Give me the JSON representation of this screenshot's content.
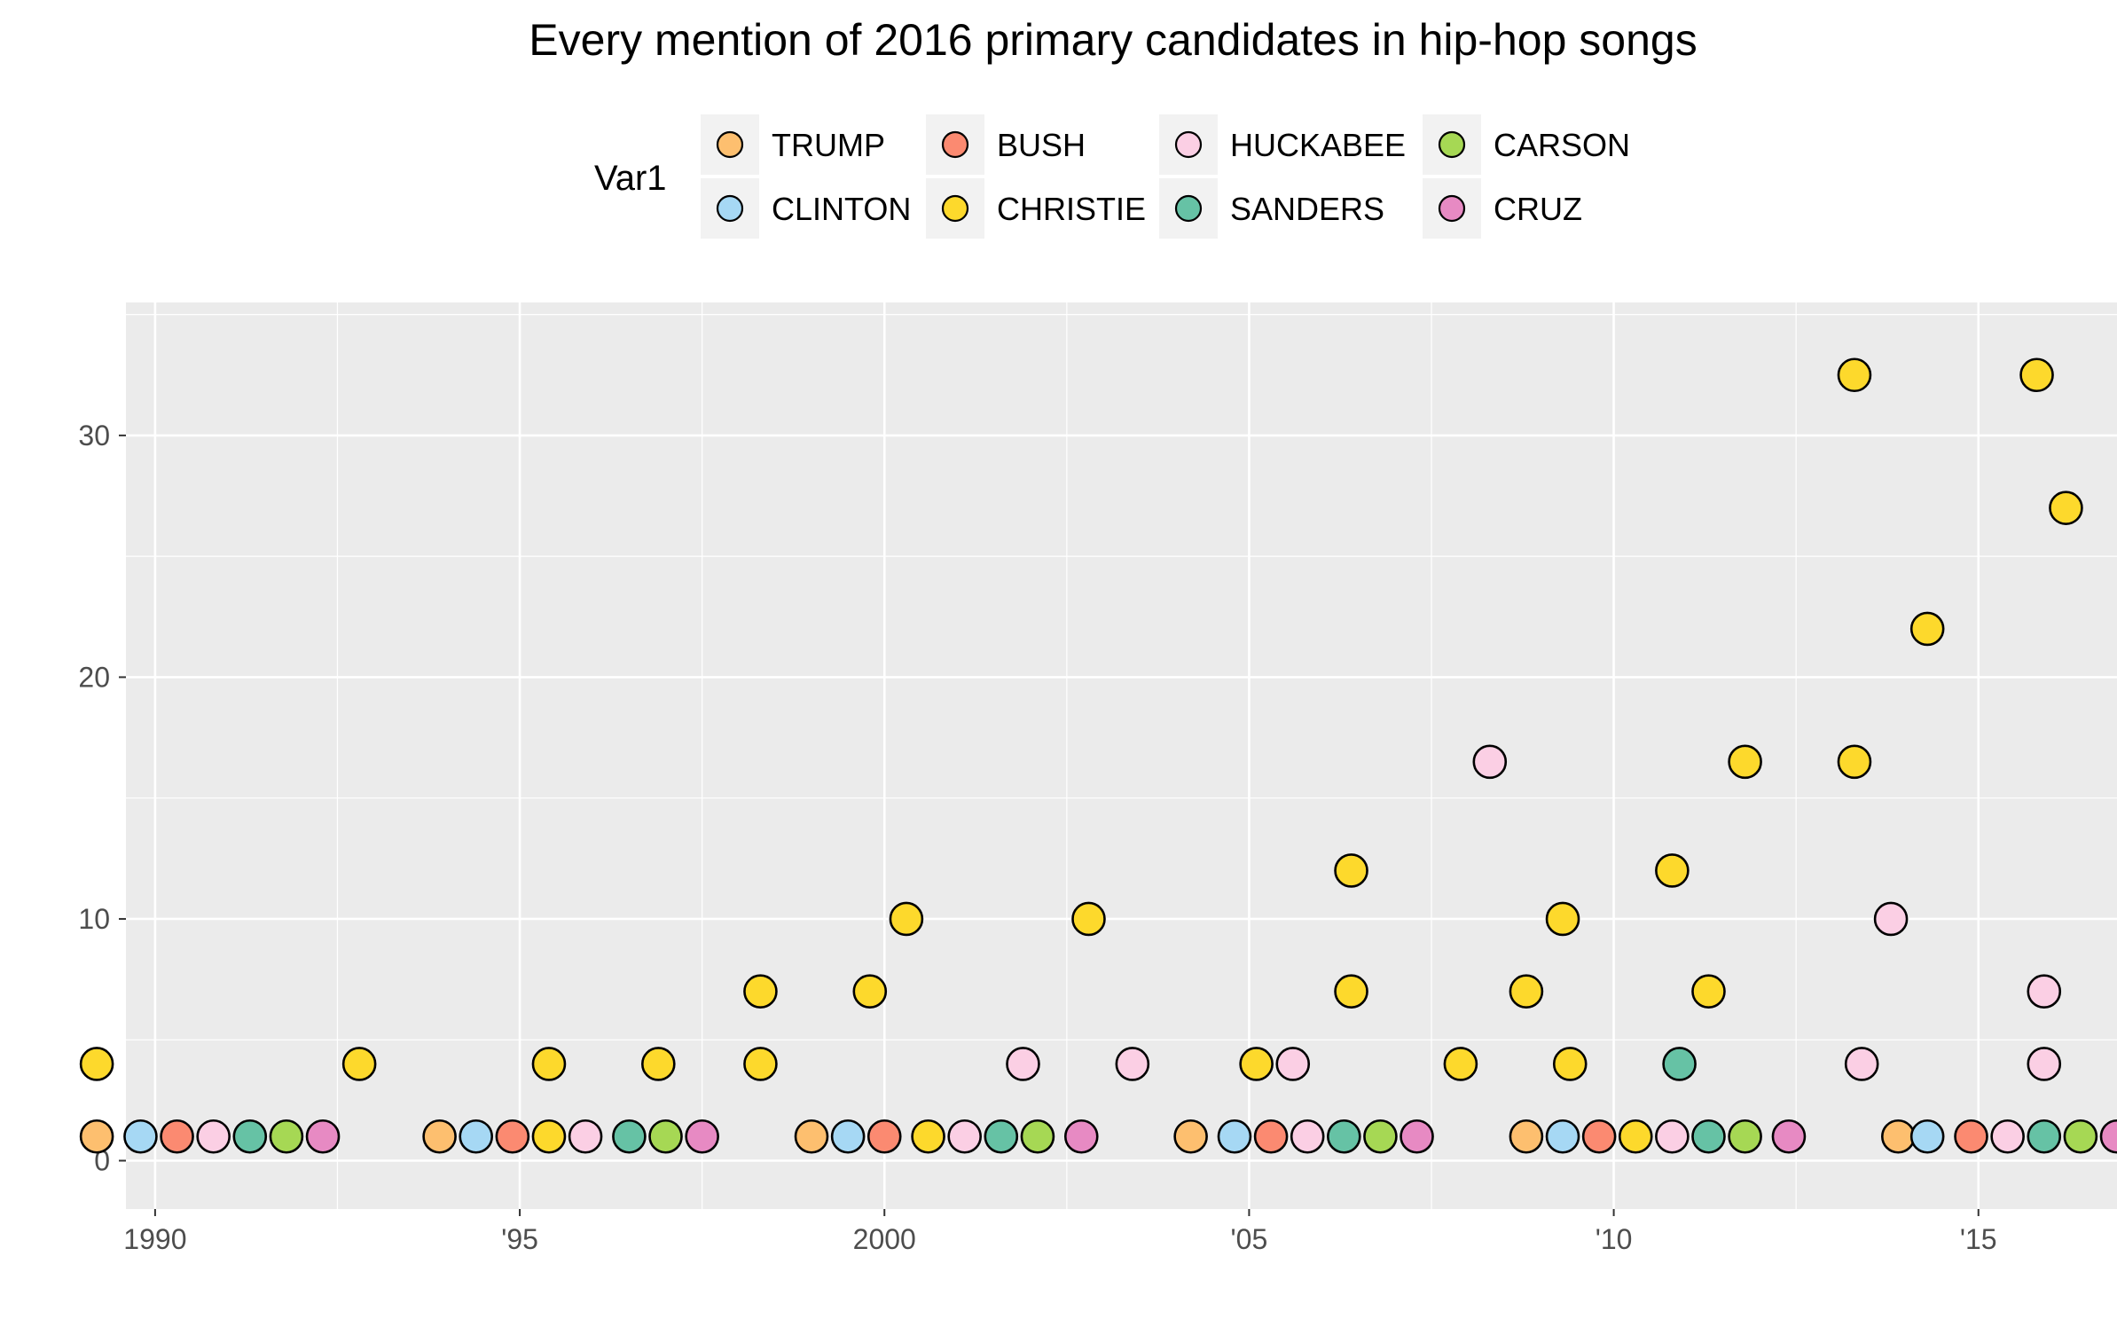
{
  "chart_data": {
    "type": "scatter",
    "title": "Every mention of 2016 primary candidates in hip-hop songs",
    "xlabel": "",
    "ylabel": "",
    "legend_title": "Var1",
    "legend_position": "top",
    "grid": true,
    "xlim": [
      1989.6,
      2016.9
    ],
    "ylim": [
      -2,
      35.5
    ],
    "x_ticks": [
      {
        "value": 1990,
        "label": "1990"
      },
      {
        "value": 1995,
        "label": "'95"
      },
      {
        "value": 2000,
        "label": "2000"
      },
      {
        "value": 2005,
        "label": "'05"
      },
      {
        "value": 2010,
        "label": "'10"
      },
      {
        "value": 2015,
        "label": "'15"
      }
    ],
    "y_ticks": [
      {
        "value": 0,
        "label": "0"
      },
      {
        "value": 10,
        "label": "10"
      },
      {
        "value": 20,
        "label": "20"
      },
      {
        "value": 30,
        "label": "30"
      }
    ],
    "series": [
      {
        "name": "TRUMP",
        "color": "#fdbf6f",
        "points": [
          [
            1989.2,
            1
          ],
          [
            1993.9,
            1
          ],
          [
            1999.0,
            1
          ],
          [
            2004.2,
            1
          ],
          [
            2008.8,
            1
          ],
          [
            2013.9,
            1
          ]
        ]
      },
      {
        "name": "CLINTON",
        "color": "#a6d8f4",
        "points": [
          [
            1989.8,
            1
          ],
          [
            1994.4,
            1
          ],
          [
            1999.5,
            1
          ],
          [
            2004.8,
            1
          ],
          [
            2009.3,
            1
          ],
          [
            2014.3,
            1
          ]
        ]
      },
      {
        "name": "BUSH",
        "color": "#fb8a71",
        "points": [
          [
            1990.3,
            1
          ],
          [
            1994.9,
            1
          ],
          [
            2000.0,
            1
          ],
          [
            2005.3,
            1
          ],
          [
            2009.8,
            1
          ],
          [
            2014.9,
            1
          ]
        ]
      },
      {
        "name": "CHRISTIE",
        "color": "#fdd92c",
        "points": [
          [
            1989.2,
            4
          ],
          [
            1992.8,
            4
          ],
          [
            1995.4,
            1
          ],
          [
            1995.4,
            4
          ],
          [
            1996.9,
            4
          ],
          [
            1998.3,
            7
          ],
          [
            1998.3,
            4
          ],
          [
            1999.8,
            7
          ],
          [
            2000.3,
            10
          ],
          [
            2000.6,
            1
          ],
          [
            2002.8,
            10
          ],
          [
            2005.1,
            4
          ],
          [
            2006.4,
            12
          ],
          [
            2006.4,
            7
          ],
          [
            2007.9,
            4
          ],
          [
            2008.8,
            7
          ],
          [
            2009.3,
            10
          ],
          [
            2009.4,
            4
          ],
          [
            2010.3,
            1
          ],
          [
            2010.8,
            12
          ],
          [
            2011.3,
            7
          ],
          [
            2011.8,
            16.5
          ],
          [
            2013.3,
            32.5
          ],
          [
            2013.3,
            16.5
          ],
          [
            2014.3,
            22
          ],
          [
            2015.8,
            32.5
          ],
          [
            2016.2,
            27
          ]
        ]
      },
      {
        "name": "HUCKABEE",
        "color": "#fbcfe4",
        "points": [
          [
            1990.8,
            1
          ],
          [
            1995.9,
            1
          ],
          [
            2001.1,
            1
          ],
          [
            2001.9,
            4
          ],
          [
            2003.4,
            4
          ],
          [
            2005.6,
            4
          ],
          [
            2005.8,
            1
          ],
          [
            2008.3,
            16.5
          ],
          [
            2010.8,
            1
          ],
          [
            2013.4,
            4
          ],
          [
            2013.8,
            10
          ],
          [
            2015.4,
            1
          ],
          [
            2015.9,
            7
          ],
          [
            2015.9,
            4
          ]
        ]
      },
      {
        "name": "SANDERS",
        "color": "#66c2a5",
        "points": [
          [
            1991.3,
            1
          ],
          [
            1996.5,
            1
          ],
          [
            2001.6,
            1
          ],
          [
            2006.3,
            1
          ],
          [
            2010.9,
            4
          ],
          [
            2011.3,
            1
          ],
          [
            2015.9,
            1
          ]
        ]
      },
      {
        "name": "CARSON",
        "color": "#a6d854",
        "points": [
          [
            1991.8,
            1
          ],
          [
            1997.0,
            1
          ],
          [
            2002.1,
            1
          ],
          [
            2006.8,
            1
          ],
          [
            2011.8,
            1
          ],
          [
            2016.4,
            1
          ]
        ]
      },
      {
        "name": "CRUZ",
        "color": "#e78ac3",
        "points": [
          [
            1992.3,
            1
          ],
          [
            1997.5,
            1
          ],
          [
            2002.7,
            1
          ],
          [
            2007.3,
            1
          ],
          [
            2012.4,
            1
          ],
          [
            2016.9,
            1
          ]
        ]
      }
    ]
  }
}
